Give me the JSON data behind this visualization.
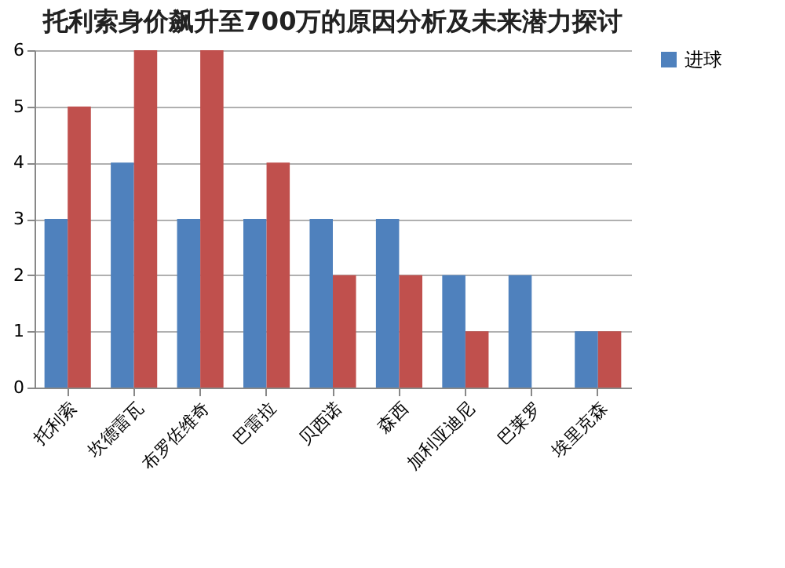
{
  "chart_data": {
    "type": "bar",
    "title": "托利索身价飙升至700万的原因分析及未来潜力探讨",
    "categories": [
      "托利索",
      "坎德雷瓦",
      "布罗佐维奇",
      "巴雷拉",
      "贝西诺",
      "森西",
      "加利亚迪尼",
      "巴莱罗",
      "埃里克森"
    ],
    "series": [
      {
        "name": "进球",
        "color": "#4f81bd",
        "values": [
          3,
          4,
          3,
          3,
          3,
          3,
          2,
          2,
          1
        ]
      },
      {
        "color": "#c0504d",
        "values": [
          5,
          6,
          6,
          4,
          2,
          2,
          1,
          0,
          1
        ]
      }
    ],
    "ylim": [
      0,
      6
    ],
    "yticks": [
      0,
      1,
      2,
      3,
      4,
      5,
      6
    ],
    "grid": "y",
    "legend": "right"
  }
}
